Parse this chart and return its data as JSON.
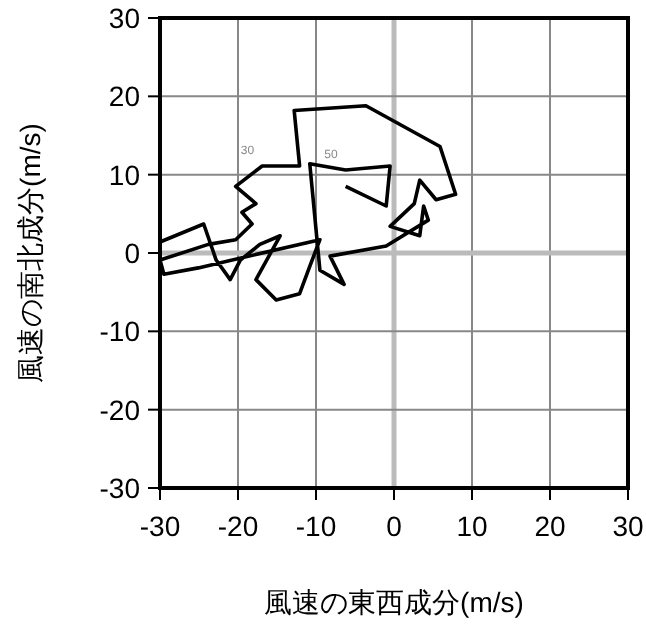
{
  "chart_data": {
    "type": "line",
    "xlabel": "風速の東西成分(m/s)",
    "ylabel": "風速の南北成分(m/s)",
    "xlim": [
      -30,
      30
    ],
    "ylim": [
      -30,
      30
    ],
    "xticks": [
      -30,
      -20,
      -10,
      0,
      10,
      20,
      30
    ],
    "yticks": [
      -30,
      -20,
      -10,
      0,
      10,
      20,
      30
    ],
    "grid": true,
    "annotations": [
      {
        "text": "30",
        "x": -16.9,
        "y": 11.1
      },
      {
        "text": "50",
        "x": -6.2,
        "y": 10.6
      }
    ],
    "series": [
      {
        "color": "#000000",
        "x": [
          -30,
          -24.4,
          -22.8,
          -21.0,
          -19.7,
          -17.2,
          -14.6,
          -17.7,
          -15.1,
          -12.1,
          -10.8,
          -9.5,
          -25.1,
          -29.5,
          -30,
          -23.8,
          -20.3,
          -18.2,
          -19.5,
          -17.7,
          -20.3,
          -16.9,
          -12.1,
          -12.8,
          -3.6,
          5.9,
          7.9,
          5.4,
          3.3,
          2.6,
          -0.5,
          3.3,
          3.8,
          4.4,
          -1.0,
          -8.2,
          -6.4,
          -9.5,
          -10.8,
          -6.2,
          -0.5,
          -1.0,
          -6.2
        ],
        "values": [
          1.4,
          3.7,
          -0.9,
          -3.4,
          -0.9,
          1.1,
          2.2,
          -3.4,
          -6.0,
          -5.2,
          -1.7,
          1.7,
          -1.9,
          -2.7,
          -0.9,
          1.1,
          1.7,
          3.7,
          5.2,
          6.3,
          8.5,
          11.1,
          11.1,
          18.2,
          18.8,
          13.6,
          7.5,
          6.8,
          9.3,
          6.3,
          3.4,
          2.2,
          6.0,
          4.2,
          0.9,
          -0.4,
          -4.0,
          -2.2,
          11.4,
          10.6,
          11.1,
          6.0,
          8.5
        ]
      }
    ]
  }
}
